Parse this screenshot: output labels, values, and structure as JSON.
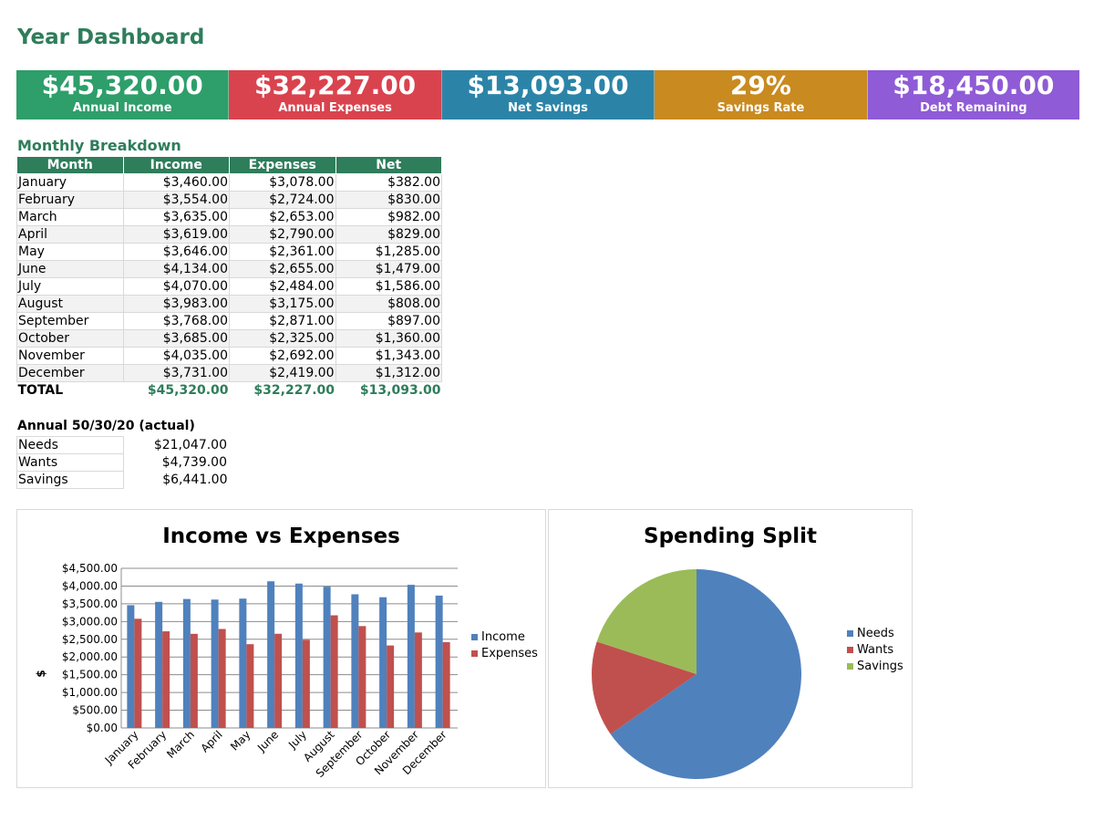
{
  "title": "Year Dashboard",
  "kpis": [
    {
      "value": "$45,320.00",
      "label": "Annual Income",
      "color": "#2e9e6a"
    },
    {
      "value": "$32,227.00",
      "label": "Annual Expenses",
      "color": "#d9434e"
    },
    {
      "value": "$13,093.00",
      "label": "Net Savings",
      "color": "#2b84a8"
    },
    {
      "value": "29%",
      "label": "Savings Rate",
      "color": "#c98a1f"
    },
    {
      "value": "$18,450.00",
      "label": "Debt Remaining",
      "color": "#8f5bd6"
    }
  ],
  "breakdown": {
    "title": "Monthly Breakdown",
    "headers": [
      "Month",
      "Income",
      "Expenses",
      "Net"
    ],
    "rows": [
      {
        "month": "January",
        "income": "$3,460.00",
        "expenses": "$3,078.00",
        "net": "$382.00"
      },
      {
        "month": "February",
        "income": "$3,554.00",
        "expenses": "$2,724.00",
        "net": "$830.00"
      },
      {
        "month": "March",
        "income": "$3,635.00",
        "expenses": "$2,653.00",
        "net": "$982.00"
      },
      {
        "month": "April",
        "income": "$3,619.00",
        "expenses": "$2,790.00",
        "net": "$829.00"
      },
      {
        "month": "May",
        "income": "$3,646.00",
        "expenses": "$2,361.00",
        "net": "$1,285.00"
      },
      {
        "month": "June",
        "income": "$4,134.00",
        "expenses": "$2,655.00",
        "net": "$1,479.00"
      },
      {
        "month": "July",
        "income": "$4,070.00",
        "expenses": "$2,484.00",
        "net": "$1,586.00"
      },
      {
        "month": "August",
        "income": "$3,983.00",
        "expenses": "$3,175.00",
        "net": "$808.00"
      },
      {
        "month": "September",
        "income": "$3,768.00",
        "expenses": "$2,871.00",
        "net": "$897.00"
      },
      {
        "month": "October",
        "income": "$3,685.00",
        "expenses": "$2,325.00",
        "net": "$1,360.00"
      },
      {
        "month": "November",
        "income": "$4,035.00",
        "expenses": "$2,692.00",
        "net": "$1,343.00"
      },
      {
        "month": "December",
        "income": "$3,731.00",
        "expenses": "$2,419.00",
        "net": "$1,312.00"
      }
    ],
    "total": {
      "label": "TOTAL",
      "income": "$45,320.00",
      "expenses": "$32,227.00",
      "net": "$13,093.00"
    },
    "header_color": "#2e7d5b"
  },
  "split": {
    "title": "Annual 50/30/20 (actual)",
    "rows": [
      {
        "label": "Needs",
        "value": "$21,047.00"
      },
      {
        "label": "Wants",
        "value": "$4,739.00"
      },
      {
        "label": "Savings",
        "value": "$6,441.00"
      }
    ]
  },
  "chart_data": [
    {
      "type": "bar",
      "title": "Income vs Expenses",
      "xlabel": "",
      "ylabel": "$",
      "categories": [
        "January",
        "February",
        "March",
        "April",
        "May",
        "June",
        "July",
        "August",
        "September",
        "October",
        "November",
        "December"
      ],
      "series": [
        {
          "name": "Income",
          "color": "#4f81bd",
          "values": [
            3460,
            3554,
            3635,
            3619,
            3646,
            4134,
            4070,
            3983,
            3768,
            3685,
            4035,
            3731
          ]
        },
        {
          "name": "Expenses",
          "color": "#c0504d",
          "values": [
            3078,
            2724,
            2653,
            2790,
            2361,
            2655,
            2484,
            3175,
            2871,
            2325,
            2692,
            2419
          ]
        }
      ],
      "ylim": [
        0,
        4500
      ],
      "ytick_labels": [
        "$0.00",
        "$500.00",
        "$1,000.00",
        "$1,500.00",
        "$2,000.00",
        "$2,500.00",
        "$3,000.00",
        "$3,500.00",
        "$4,000.00",
        "$4,500.00"
      ],
      "grid": true,
      "legend": "right"
    },
    {
      "type": "pie",
      "title": "Spending Split",
      "labels": [
        "Needs",
        "Wants",
        "Savings"
      ],
      "values": [
        21047,
        4739,
        6441
      ],
      "colors": [
        "#4f81bd",
        "#c0504d",
        "#9bbb59"
      ],
      "legend": "right"
    }
  ]
}
